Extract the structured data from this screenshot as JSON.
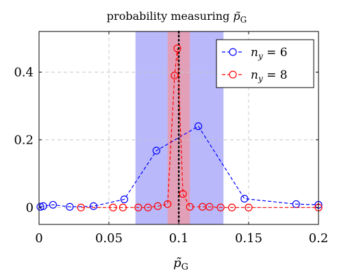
{
  "chart_data": {
    "type": "line",
    "title": "probability measuring p̃G",
    "title_main": "probability measuring ",
    "title_symbol": "p̃",
    "title_sub": "G",
    "xlabel": "p̃",
    "xlabel_sub": "G",
    "ylabel": "",
    "xlim": [
      0,
      0.2
    ],
    "ylim": [
      -0.05,
      0.52
    ],
    "xticks": [
      0,
      0.05,
      0.1,
      0.15,
      0.2
    ],
    "xtick_labels": [
      "0",
      "0.05",
      "0.1",
      "0.15",
      "0.2"
    ],
    "yticks": [
      0,
      0.2,
      0.4
    ],
    "ytick_labels": [
      "0",
      "0.2",
      "0.4"
    ],
    "grid": true,
    "legend_position": "top-right",
    "shaded_regions": [
      {
        "x0": 0.069,
        "x1": 0.132,
        "color": "#b8b8fb"
      },
      {
        "x0": 0.092,
        "x1": 0.108,
        "color": "#e2a0b8"
      }
    ],
    "reference_line": {
      "x": 0.1,
      "style": "dotted",
      "color": "#000000"
    },
    "series": [
      {
        "name": "n_y = 6",
        "legend_var": "n",
        "legend_sub": "y",
        "legend_value": " = 6",
        "color": "#0000ff",
        "x": [
          0.001,
          0.003,
          0.01,
          0.022,
          0.039,
          0.061,
          0.084,
          0.114,
          0.147,
          0.184,
          0.2
        ],
        "values": [
          0.002,
          0.004,
          0.008,
          0.002,
          0.004,
          0.024,
          0.168,
          0.24,
          0.026,
          0.01,
          0.008
        ]
      },
      {
        "name": "n_y = 8",
        "legend_var": "n",
        "legend_sub": "y",
        "legend_value": " = 8",
        "color": "#ff0000",
        "x": [
          0.03,
          0.053,
          0.06,
          0.071,
          0.078,
          0.085,
          0.092,
          0.097,
          0.099,
          0.103,
          0.108,
          0.117,
          0.122,
          0.13,
          0.138,
          0.15,
          0.2
        ],
        "values": [
          0.0,
          0.0,
          0.0,
          0.0,
          0.0,
          0.004,
          0.01,
          0.39,
          0.47,
          0.04,
          0.002,
          0.002,
          0.002,
          0.0,
          0.0,
          0.0,
          0.0
        ]
      }
    ]
  }
}
